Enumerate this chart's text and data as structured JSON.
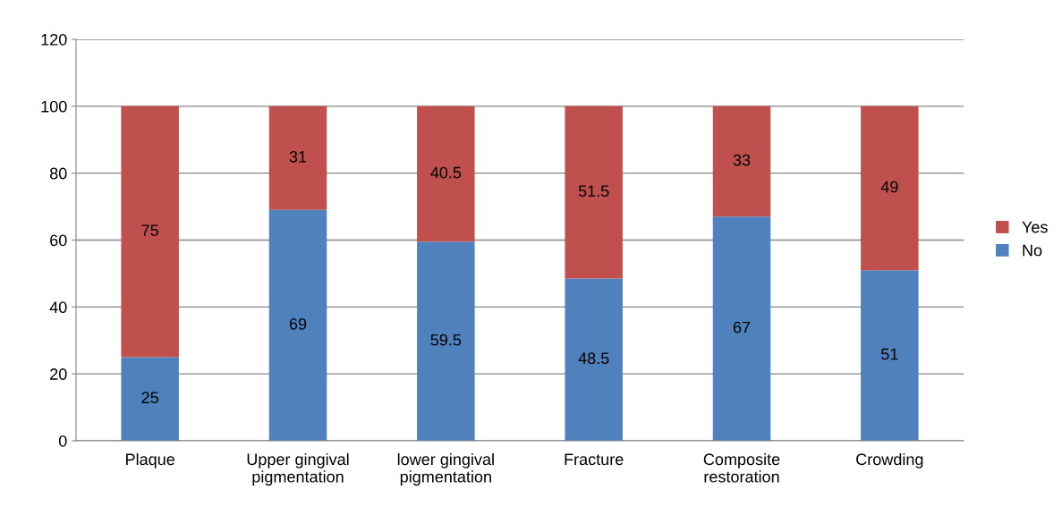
{
  "chart_data": {
    "type": "bar",
    "stacked": true,
    "categories": [
      "Plaque",
      "Upper gingival\npigmentation",
      "lower gingival\npigmentation",
      "Fracture",
      "Composite\nrestoration",
      "Crowding"
    ],
    "series": [
      {
        "name": "No",
        "color": "#4f81bd",
        "values": [
          25,
          69,
          59.5,
          48.5,
          67,
          51
        ]
      },
      {
        "name": "Yes",
        "color": "#c0504d",
        "values": [
          75,
          31,
          40.5,
          51.5,
          33,
          49
        ]
      }
    ],
    "ylim": [
      0,
      120
    ],
    "yticks": [
      0,
      20,
      40,
      60,
      80,
      100,
      120
    ],
    "grid": "y",
    "legend": "right",
    "data_labels": true
  }
}
